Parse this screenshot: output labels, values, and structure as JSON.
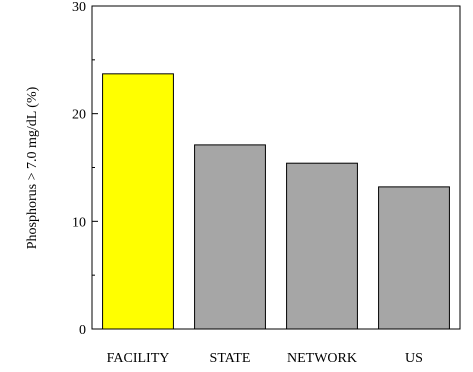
{
  "chart_data": {
    "type": "bar",
    "categories": [
      "FACILITY",
      "STATE",
      "NETWORK",
      "US"
    ],
    "values": [
      23.7,
      17.1,
      15.4,
      13.2
    ],
    "colors": [
      "#ffff00",
      "#a6a6a6",
      "#a6a6a6",
      "#a6a6a6"
    ],
    "ylabel": "Phosphorus > 7.0 mg/dL (%)",
    "xlabel": "",
    "ylim": [
      0,
      30
    ],
    "yticks": [
      0,
      10,
      20,
      30
    ],
    "grid": false,
    "title": ""
  }
}
